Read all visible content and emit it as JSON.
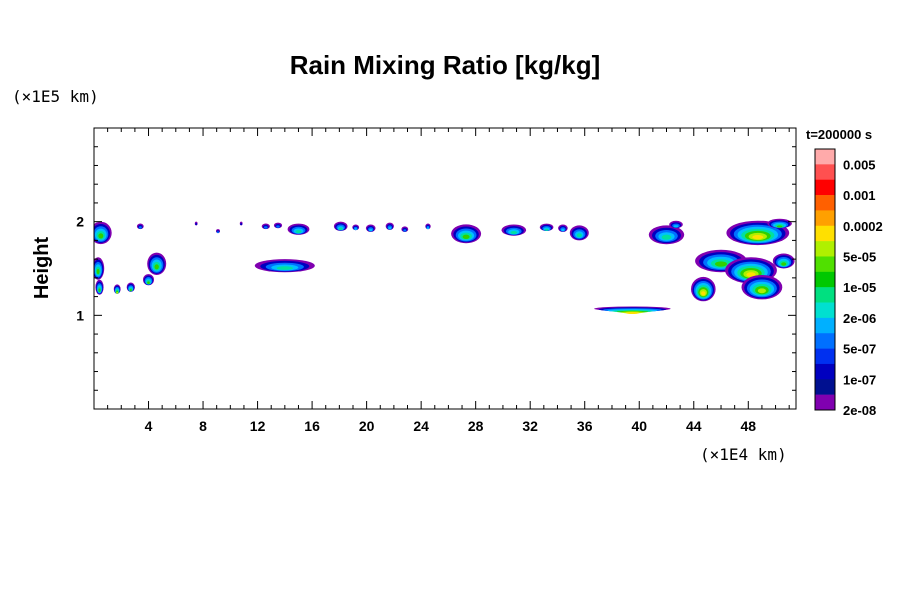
{
  "chart_data": {
    "type": "heatmap",
    "title": "Rain Mixing Ratio [kg/kg]",
    "xlabel": "",
    "ylabel": "Height",
    "x_unit": "(×1E4 km)",
    "y_unit": "(×1E5 km)",
    "xlim": [
      0,
      51.5
    ],
    "ylim": [
      0,
      3
    ],
    "x_ticks": [
      4,
      8,
      12,
      16,
      20,
      24,
      28,
      32,
      36,
      40,
      44,
      48
    ],
    "x_tick_labels": [
      "4",
      "8",
      "12",
      "16",
      "20",
      "24",
      "28",
      "32",
      "36",
      "40",
      "44",
      "48"
    ],
    "y_ticks": [
      1,
      2
    ],
    "y_tick_labels": [
      "1",
      "2"
    ],
    "time_label": "t=200000 s",
    "colorbar": {
      "labels": [
        "0.005",
        "0.001",
        "0.0002",
        "5e-05",
        "1e-05",
        "2e-06",
        "5e-07",
        "1e-07",
        "2e-08"
      ],
      "colors": [
        "#ffaaaa",
        "#ff5050",
        "#ff0000",
        "#ff6000",
        "#ffa000",
        "#ffe000",
        "#b0f000",
        "#50e000",
        "#00c800",
        "#00e080",
        "#00e0d0",
        "#00b0ff",
        "#0070ff",
        "#0030f0",
        "#0000c0",
        "#001090",
        "#8000b0"
      ]
    },
    "cells": [
      {
        "x": 0.5,
        "y": 1.88,
        "rx": 0.8,
        "ry": 0.12,
        "level": 4
      },
      {
        "x": 0.3,
        "y": 1.5,
        "rx": 0.45,
        "ry": 0.12,
        "level": 4
      },
      {
        "x": 0.4,
        "y": 1.3,
        "rx": 0.3,
        "ry": 0.08,
        "level": 4
      },
      {
        "x": 1.7,
        "y": 1.28,
        "rx": 0.25,
        "ry": 0.05,
        "level": 5
      },
      {
        "x": 2.7,
        "y": 1.3,
        "rx": 0.3,
        "ry": 0.05,
        "level": 4
      },
      {
        "x": 4.0,
        "y": 1.38,
        "rx": 0.4,
        "ry": 0.06,
        "level": 4
      },
      {
        "x": 4.6,
        "y": 1.55,
        "rx": 0.7,
        "ry": 0.12,
        "level": 4
      },
      {
        "x": 3.4,
        "y": 1.95,
        "rx": 0.25,
        "ry": 0.03,
        "level": 1
      },
      {
        "x": 7.5,
        "y": 1.98,
        "rx": 0.1,
        "ry": 0.02,
        "level": 0
      },
      {
        "x": 9.1,
        "y": 1.9,
        "rx": 0.15,
        "ry": 0.02,
        "level": 1
      },
      {
        "x": 10.8,
        "y": 1.98,
        "rx": 0.1,
        "ry": 0.02,
        "level": 0
      },
      {
        "x": 12.6,
        "y": 1.95,
        "rx": 0.3,
        "ry": 0.03,
        "level": 1
      },
      {
        "x": 13.5,
        "y": 1.96,
        "rx": 0.3,
        "ry": 0.03,
        "level": 1
      },
      {
        "x": 15.0,
        "y": 1.92,
        "rx": 0.8,
        "ry": 0.06,
        "level": 3
      },
      {
        "x": 14.0,
        "y": 1.53,
        "rx": 2.2,
        "ry": 0.07,
        "level": 3
      },
      {
        "x": 18.1,
        "y": 1.95,
        "rx": 0.5,
        "ry": 0.05,
        "level": 3
      },
      {
        "x": 19.2,
        "y": 1.94,
        "rx": 0.25,
        "ry": 0.03,
        "level": 2
      },
      {
        "x": 20.3,
        "y": 1.93,
        "rx": 0.35,
        "ry": 0.04,
        "level": 2
      },
      {
        "x": 21.7,
        "y": 1.95,
        "rx": 0.3,
        "ry": 0.04,
        "level": 2
      },
      {
        "x": 22.8,
        "y": 1.92,
        "rx": 0.25,
        "ry": 0.03,
        "level": 1
      },
      {
        "x": 24.5,
        "y": 1.95,
        "rx": 0.2,
        "ry": 0.03,
        "level": 2
      },
      {
        "x": 27.3,
        "y": 1.87,
        "rx": 1.1,
        "ry": 0.1,
        "level": 4
      },
      {
        "x": 30.8,
        "y": 1.91,
        "rx": 0.9,
        "ry": 0.06,
        "level": 3
      },
      {
        "x": 33.2,
        "y": 1.94,
        "rx": 0.5,
        "ry": 0.04,
        "level": 3
      },
      {
        "x": 34.4,
        "y": 1.93,
        "rx": 0.35,
        "ry": 0.04,
        "level": 2
      },
      {
        "x": 35.6,
        "y": 1.88,
        "rx": 0.7,
        "ry": 0.08,
        "level": 3
      },
      {
        "x": 39.5,
        "y": 1.07,
        "rx": 2.8,
        "ry": 0.025,
        "level": 6
      },
      {
        "x": 42.0,
        "y": 1.86,
        "rx": 1.3,
        "ry": 0.1,
        "level": 3
      },
      {
        "x": 42.7,
        "y": 1.97,
        "rx": 0.5,
        "ry": 0.04,
        "level": 2
      },
      {
        "x": 44.7,
        "y": 1.28,
        "rx": 0.9,
        "ry": 0.13,
        "level": 6
      },
      {
        "x": 46.0,
        "y": 1.58,
        "rx": 1.9,
        "ry": 0.12,
        "level": 4
      },
      {
        "x": 48.2,
        "y": 1.48,
        "rx": 1.9,
        "ry": 0.14,
        "level": 6
      },
      {
        "x": 49.0,
        "y": 1.3,
        "rx": 1.5,
        "ry": 0.13,
        "level": 5
      },
      {
        "x": 48.7,
        "y": 1.88,
        "rx": 2.3,
        "ry": 0.13,
        "level": 6
      },
      {
        "x": 50.3,
        "y": 1.98,
        "rx": 0.9,
        "ry": 0.05,
        "level": 4
      },
      {
        "x": 50.6,
        "y": 1.58,
        "rx": 0.8,
        "ry": 0.08,
        "level": 4
      }
    ]
  }
}
